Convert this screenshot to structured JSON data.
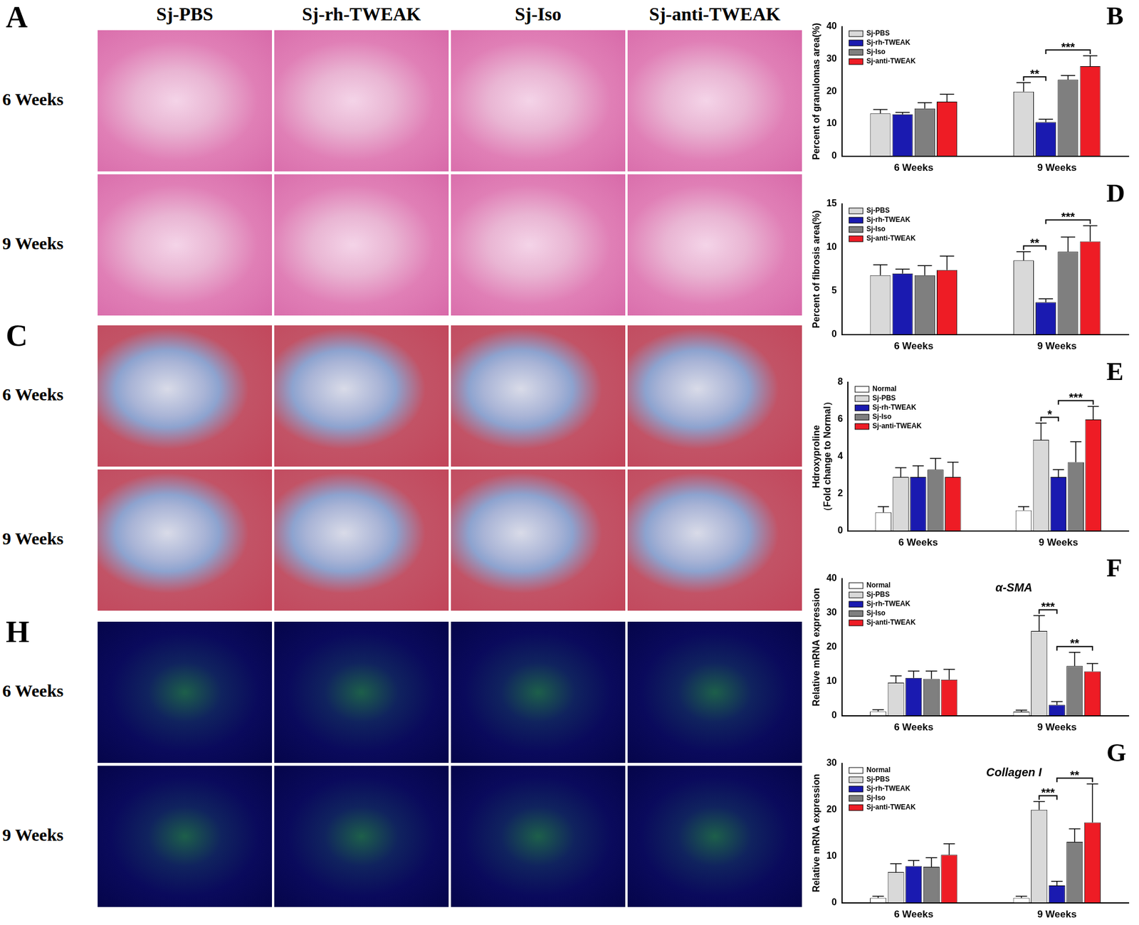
{
  "figure": {
    "columns": [
      "Sj-PBS",
      "Sj-rh-TWEAK",
      "Sj-Iso",
      "Sj-anti-TWEAK"
    ],
    "image_panels": [
      {
        "label": "A",
        "rows": [
          "6 Weeks",
          "9 Weeks"
        ]
      },
      {
        "label": "C",
        "rows": [
          "6 Weeks",
          "9 Weeks"
        ]
      },
      {
        "label": "H",
        "rows": [
          "6 Weeks",
          "9 Weeks"
        ]
      }
    ]
  },
  "chart_data": [
    {
      "panel": "B",
      "type": "bar",
      "categories": [
        "6 Weeks",
        "9 Weeks"
      ],
      "y_label": "Percent of granulomas area(%)",
      "ylim": [
        0,
        40
      ],
      "yticks": [
        0,
        10,
        20,
        30,
        40
      ],
      "grid": false,
      "legend": "upper left",
      "series": [
        {
          "name": "Sj-PBS",
          "color": "#d9d9d9",
          "values": [
            13.2,
            19.9
          ],
          "errors": [
            1.2,
            2.8
          ]
        },
        {
          "name": "Sj-rh-TWEAK",
          "color": "#1a1ab0",
          "values": [
            12.9,
            10.5
          ],
          "errors": [
            0.6,
            0.9
          ]
        },
        {
          "name": "Sj-Iso",
          "color": "#7f7f7f",
          "values": [
            14.7,
            23.6
          ],
          "errors": [
            1.8,
            1.3
          ]
        },
        {
          "name": "Sj-anti-TWEAK",
          "color": "#ee1c25",
          "values": [
            16.8,
            27.8
          ],
          "errors": [
            2.3,
            3.2
          ]
        }
      ],
      "annotations": [
        {
          "text": "**",
          "category": "9 Weeks",
          "between": [
            "Sj-PBS",
            "Sj-rh-TWEAK"
          ]
        },
        {
          "text": "***",
          "category": "9 Weeks",
          "between": [
            "Sj-rh-TWEAK",
            "Sj-anti-TWEAK"
          ]
        }
      ]
    },
    {
      "panel": "D",
      "type": "bar",
      "categories": [
        "6 Weeks",
        "9 Weeks"
      ],
      "y_label": "Percent of fibrosis area(%)",
      "ylim": [
        0,
        15
      ],
      "yticks": [
        0,
        5,
        10,
        15
      ],
      "grid": false,
      "legend": "upper left",
      "series": [
        {
          "name": "Sj-PBS",
          "color": "#d9d9d9",
          "values": [
            6.8,
            8.5
          ],
          "errors": [
            1.2,
            1.0
          ]
        },
        {
          "name": "Sj-rh-TWEAK",
          "color": "#1a1ab0",
          "values": [
            7.0,
            3.7
          ],
          "errors": [
            0.5,
            0.4
          ]
        },
        {
          "name": "Sj-Iso",
          "color": "#7f7f7f",
          "values": [
            6.8,
            9.5
          ],
          "errors": [
            1.1,
            1.7
          ]
        },
        {
          "name": "Sj-anti-TWEAK",
          "color": "#ee1c25",
          "values": [
            7.4,
            10.7
          ],
          "errors": [
            1.6,
            1.8
          ]
        }
      ],
      "annotations": [
        {
          "text": "**",
          "category": "9 Weeks",
          "between": [
            "Sj-PBS",
            "Sj-rh-TWEAK"
          ]
        },
        {
          "text": "***",
          "category": "9 Weeks",
          "between": [
            "Sj-rh-TWEAK",
            "Sj-anti-TWEAK"
          ]
        }
      ]
    },
    {
      "panel": "E",
      "type": "bar",
      "categories": [
        "6 Weeks",
        "9 Weeks"
      ],
      "y_label": [
        "Hdroxyproline",
        "（Fold change to Normal）"
      ],
      "ylim": [
        0,
        8
      ],
      "yticks": [
        0,
        2,
        4,
        6,
        8
      ],
      "grid": false,
      "legend": "upper left",
      "series": [
        {
          "name": "Normal",
          "color": "#ffffff",
          "values": [
            1.0,
            1.1
          ],
          "errors": [
            0.3,
            0.2
          ]
        },
        {
          "name": "Sj-PBS",
          "color": "#d9d9d9",
          "values": [
            2.9,
            4.9
          ],
          "errors": [
            0.5,
            0.9
          ]
        },
        {
          "name": "Sj-rh-TWEAK",
          "color": "#1a1ab0",
          "values": [
            2.9,
            2.9
          ],
          "errors": [
            0.6,
            0.4
          ]
        },
        {
          "name": "Sj-Iso",
          "color": "#7f7f7f",
          "values": [
            3.3,
            3.7
          ],
          "errors": [
            0.6,
            1.1
          ]
        },
        {
          "name": "Sj-anti-TWEAK",
          "color": "#ee1c25",
          "values": [
            2.9,
            6.0
          ],
          "errors": [
            0.8,
            0.7
          ]
        }
      ],
      "annotations": [
        {
          "text": "*",
          "category": "9 Weeks",
          "between": [
            "Sj-PBS",
            "Sj-rh-TWEAK"
          ]
        },
        {
          "text": "***",
          "category": "9 Weeks",
          "between": [
            "Sj-rh-TWEAK",
            "Sj-anti-TWEAK"
          ]
        }
      ]
    },
    {
      "panel": "F",
      "type": "bar",
      "title": "α-SMA",
      "categories": [
        "6 Weeks",
        "9 Weeks"
      ],
      "y_label": "Relative mRNA expression",
      "ylim": [
        0,
        40
      ],
      "yticks": [
        0,
        10,
        20,
        30,
        40
      ],
      "grid": false,
      "legend": "upper left",
      "series": [
        {
          "name": "Normal",
          "color": "#ffffff",
          "values": [
            1.2,
            1.1
          ],
          "errors": [
            0.5,
            0.5
          ]
        },
        {
          "name": "Sj-PBS",
          "color": "#d9d9d9",
          "values": [
            9.6,
            24.7
          ],
          "errors": [
            2.0,
            4.5
          ]
        },
        {
          "name": "Sj-rh-TWEAK",
          "color": "#1a1ab0",
          "values": [
            11.0,
            3.1
          ],
          "errors": [
            2.0,
            1.0
          ]
        },
        {
          "name": "Sj-Iso",
          "color": "#7f7f7f",
          "values": [
            10.7,
            14.5
          ],
          "errors": [
            2.3,
            4.0
          ]
        },
        {
          "name": "Sj-anti-TWEAK",
          "color": "#ee1c25",
          "values": [
            10.5,
            12.9
          ],
          "errors": [
            3.0,
            2.3
          ]
        }
      ],
      "annotations": [
        {
          "text": "***",
          "category": "9 Weeks",
          "between": [
            "Sj-PBS",
            "Sj-rh-TWEAK"
          ]
        },
        {
          "text": "**",
          "category": "9 Weeks",
          "between": [
            "Sj-rh-TWEAK",
            "Sj-anti-TWEAK"
          ]
        }
      ]
    },
    {
      "panel": "G",
      "type": "bar",
      "title": "Collagen I",
      "categories": [
        "6 Weeks",
        "9 Weeks"
      ],
      "y_label": "Relative mRNA expression",
      "ylim": [
        0,
        30
      ],
      "yticks": [
        0,
        10,
        20,
        30
      ],
      "grid": false,
      "legend": "upper left",
      "series": [
        {
          "name": "Normal",
          "color": "#ffffff",
          "values": [
            1.0,
            1.0
          ],
          "errors": [
            0.4,
            0.4
          ]
        },
        {
          "name": "Sj-PBS",
          "color": "#d9d9d9",
          "values": [
            6.6,
            20.0
          ],
          "errors": [
            1.8,
            1.8
          ]
        },
        {
          "name": "Sj-rh-TWEAK",
          "color": "#1a1ab0",
          "values": [
            7.9,
            3.7
          ],
          "errors": [
            1.2,
            0.9
          ]
        },
        {
          "name": "Sj-Iso",
          "color": "#7f7f7f",
          "values": [
            7.7,
            13.1
          ],
          "errors": [
            2.0,
            2.8
          ]
        },
        {
          "name": "Sj-anti-TWEAK",
          "color": "#ee1c25",
          "values": [
            10.3,
            17.3
          ],
          "errors": [
            2.4,
            8.3
          ]
        }
      ],
      "annotations": [
        {
          "text": "***",
          "category": "9 Weeks",
          "between": [
            "Sj-PBS",
            "Sj-rh-TWEAK"
          ]
        },
        {
          "text": "**",
          "category": "9 Weeks",
          "between": [
            "Sj-rh-TWEAK",
            "Sj-anti-TWEAK"
          ]
        }
      ]
    }
  ]
}
